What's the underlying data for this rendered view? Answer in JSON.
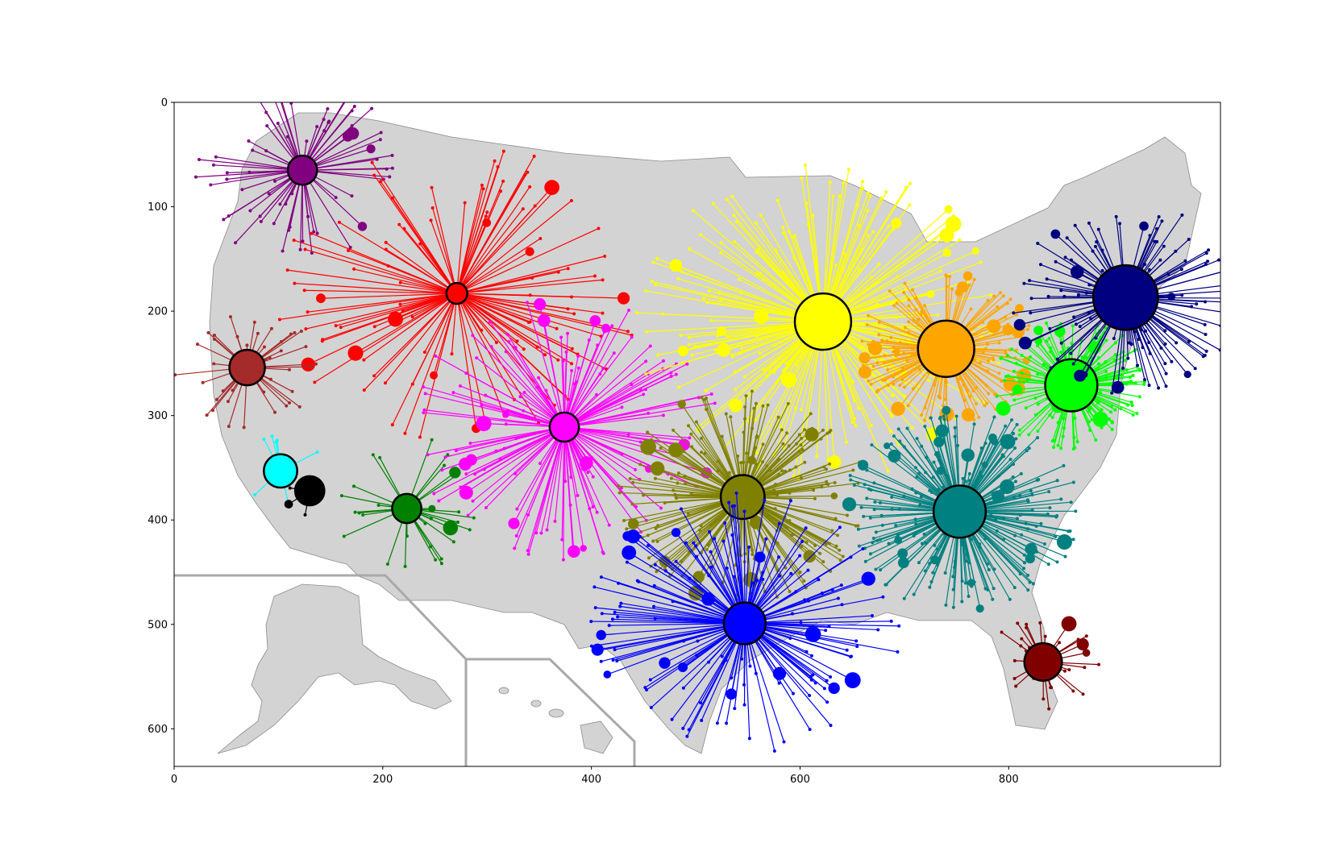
{
  "chart_data": {
    "type": "scatter",
    "title": "",
    "xlabel": "",
    "ylabel": "",
    "xlim": [
      0,
      1003
    ],
    "ylim": [
      636,
      0
    ],
    "y_inverted": true,
    "xticks": [
      0,
      200,
      400,
      600,
      800
    ],
    "yticks": [
      0,
      100,
      200,
      300,
      400,
      500,
      600
    ],
    "grid": false,
    "background": "map of the United States by county (light gray), with Alaska and Hawaii insets",
    "base_map_color": "#d3d3d3",
    "clusters": [
      {
        "color": "#800080",
        "center": [
          123,
          65
        ],
        "radius": 14,
        "n_spokes": 70,
        "spread": 105
      },
      {
        "color": "#ff0000",
        "center": [
          271,
          183
        ],
        "radius": 10,
        "n_spokes": 110,
        "spread": 175
      },
      {
        "color": "#a52a2a",
        "center": [
          70,
          254
        ],
        "radius": 17,
        "n_spokes": 40,
        "spread": 70
      },
      {
        "color": "#00ffff",
        "center": [
          102,
          353
        ],
        "radius": 16,
        "n_spokes": 8,
        "spread": 45
      },
      {
        "color": "#000000",
        "center": [
          130,
          372
        ],
        "radius": 14,
        "n_spokes": 6,
        "spread": 30
      },
      {
        "color": "#008000",
        "center": [
          223,
          389
        ],
        "radius": 14,
        "n_spokes": 30,
        "spread": 85
      },
      {
        "color": "#ff00ff",
        "center": [
          374,
          311
        ],
        "radius": 14,
        "n_spokes": 150,
        "spread": 150
      },
      {
        "color": "#ffff00",
        "center": [
          622,
          210
        ],
        "radius": 27,
        "n_spokes": 220,
        "spread": 180
      },
      {
        "color": "#808000",
        "center": [
          545,
          378
        ],
        "radius": 21,
        "n_spokes": 200,
        "spread": 120
      },
      {
        "color": "#ffa500",
        "center": [
          740,
          236
        ],
        "radius": 27,
        "n_spokes": 160,
        "spread": 85
      },
      {
        "color": "#00ff00",
        "center": [
          860,
          271
        ],
        "radius": 25,
        "n_spokes": 160,
        "spread": 75
      },
      {
        "color": "#000080",
        "center": [
          912,
          187
        ],
        "radius": 31,
        "n_spokes": 120,
        "spread": 110
      },
      {
        "color": "#008080",
        "center": [
          753,
          392
        ],
        "radius": 25,
        "n_spokes": 240,
        "spread": 115
      },
      {
        "color": "#0000ff",
        "center": [
          547,
          499
        ],
        "radius": 20,
        "n_spokes": 160,
        "spread": 150
      },
      {
        "color": "#800000",
        "center": [
          833,
          536
        ],
        "radius": 18,
        "n_spokes": 30,
        "spread": 55
      }
    ]
  }
}
